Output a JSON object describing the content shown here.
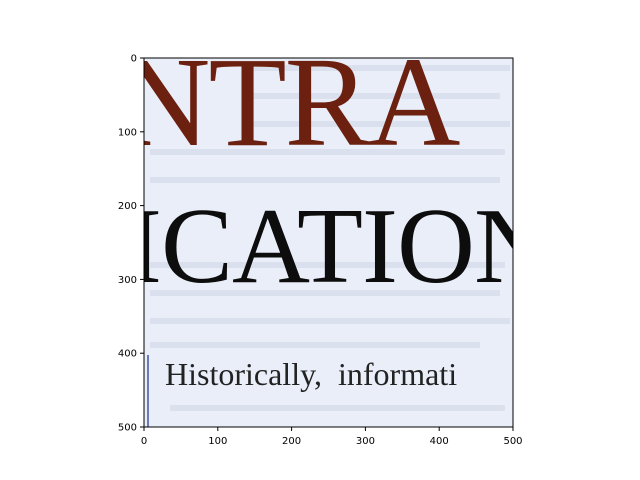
{
  "image": {
    "headline_fragment": "NTRA",
    "heading_fragment": "ICATION",
    "body_fragment": "Historically,  informati",
    "colors": {
      "paper": "#e9eef9",
      "headline": "#6b2010",
      "heading": "#0d0d0d",
      "body": "#222222",
      "ghost_text": "#c9d0de"
    }
  },
  "axes": {
    "x_ticks": [
      "0",
      "100",
      "200",
      "300",
      "400",
      "500"
    ],
    "y_ticks": [
      "0",
      "100",
      "200",
      "300",
      "400",
      "500"
    ]
  }
}
